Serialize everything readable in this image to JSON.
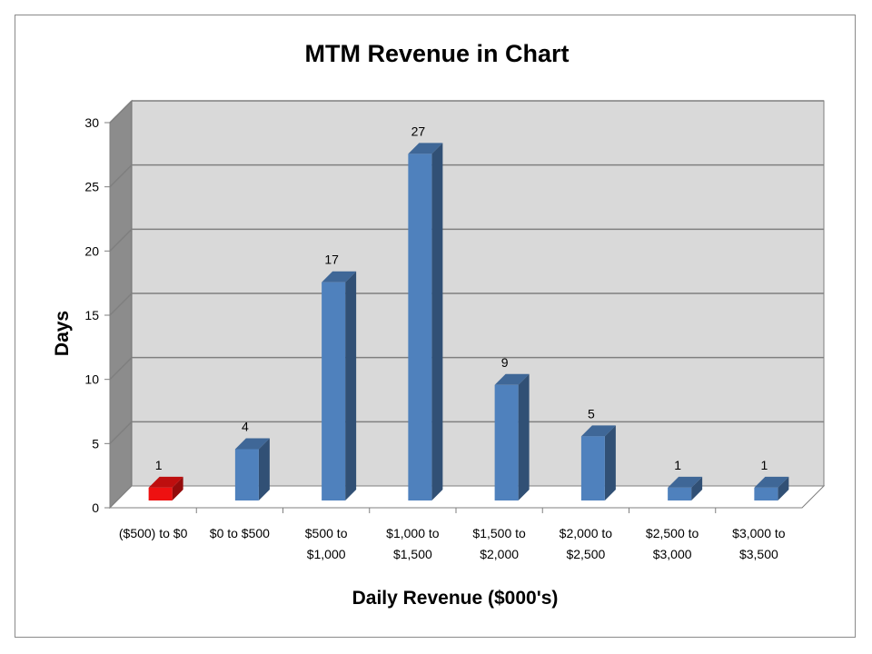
{
  "chart_data": {
    "type": "bar",
    "title": "MTM Revenue in Chart",
    "xlabel": "Daily Revenue ($000's)",
    "ylabel": "Days",
    "ylim": [
      0,
      30
    ],
    "yticks": [
      0,
      5,
      10,
      15,
      20,
      25,
      30
    ],
    "categories": [
      [
        "($500) to $0"
      ],
      [
        "$0 to $500"
      ],
      [
        "$500 to",
        "$1,000"
      ],
      [
        "$1,000 to",
        "$1,500"
      ],
      [
        "$1,500 to",
        "$2,000"
      ],
      [
        "$2,000 to",
        "$2,500"
      ],
      [
        "$2,500 to",
        "$3,000"
      ],
      [
        "$3,000 to",
        "$3,500"
      ]
    ],
    "values": [
      1,
      4,
      17,
      27,
      9,
      5,
      1,
      1
    ],
    "bar_colors": [
      "#ee1111",
      "#4f81bd",
      "#4f81bd",
      "#4f81bd",
      "#4f81bd",
      "#4f81bd",
      "#4f81bd",
      "#4f81bd"
    ],
    "grid": true,
    "legend": "none",
    "style": "3d-column",
    "colors": {
      "wall": "#d9d9d9",
      "side_wall": "#8c8c8c",
      "floor": "#ffffff",
      "gridline": "#7f7f7f"
    }
  }
}
